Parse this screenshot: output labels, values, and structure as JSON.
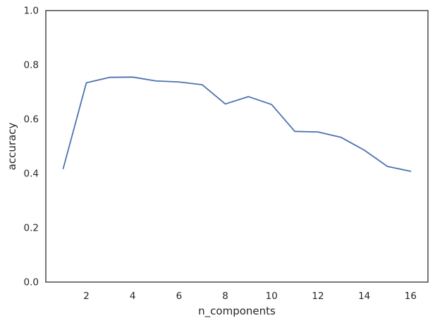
{
  "chart_data": {
    "type": "line",
    "title": "",
    "xlabel": "n_components",
    "ylabel": "accuracy",
    "xlim": [
      0.25,
      16.75
    ],
    "ylim": [
      0.0,
      1.0
    ],
    "xticks": [
      2,
      4,
      6,
      8,
      10,
      12,
      14,
      16
    ],
    "xtick_labels": [
      "2",
      "4",
      "6",
      "8",
      "10",
      "12",
      "14",
      "16"
    ],
    "yticks": [
      0.0,
      0.2,
      0.4,
      0.6,
      0.8,
      1.0
    ],
    "ytick_labels": [
      "0.0",
      "0.2",
      "0.4",
      "0.6",
      "0.8",
      "1.0"
    ],
    "grid": false,
    "series": [
      {
        "x": [
          1,
          2,
          3,
          4,
          5,
          6,
          7,
          8,
          9,
          10,
          11,
          12,
          13,
          14,
          15,
          16
        ],
        "y": [
          0.418,
          0.734,
          0.754,
          0.755,
          0.741,
          0.737,
          0.727,
          0.656,
          0.683,
          0.654,
          0.555,
          0.553,
          0.533,
          0.486,
          0.426,
          0.408
        ],
        "color": "#4c72b0"
      }
    ]
  }
}
